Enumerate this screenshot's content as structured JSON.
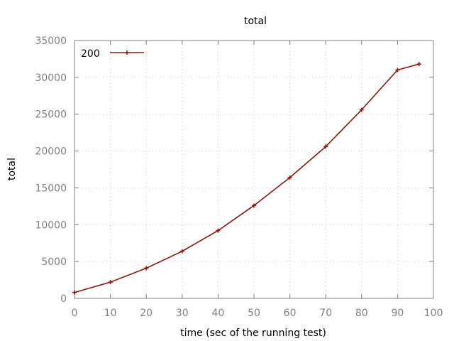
{
  "chart_data": {
    "type": "line",
    "title": "total",
    "xlabel": "time (sec of the running test)",
    "ylabel": "total",
    "xlim": [
      0,
      100
    ],
    "ylim": [
      0,
      35000
    ],
    "x_ticks": [
      "0",
      "10",
      "20",
      "30",
      "40",
      "50",
      "60",
      "70",
      "80",
      "90",
      "100"
    ],
    "y_ticks": [
      "0",
      "5000",
      "10000",
      "15000",
      "20000",
      "25000",
      "30000",
      "35000"
    ],
    "grid": true,
    "legend_position": "top-left",
    "series": [
      {
        "name": "200",
        "color": "#8b1a0e",
        "marker": "plus",
        "x": [
          0,
          10,
          20,
          30,
          40,
          50,
          60,
          70,
          80,
          90,
          96
        ],
        "y": [
          800,
          2200,
          4100,
          6400,
          9200,
          12600,
          16400,
          20600,
          25600,
          31000,
          31800
        ]
      }
    ]
  }
}
